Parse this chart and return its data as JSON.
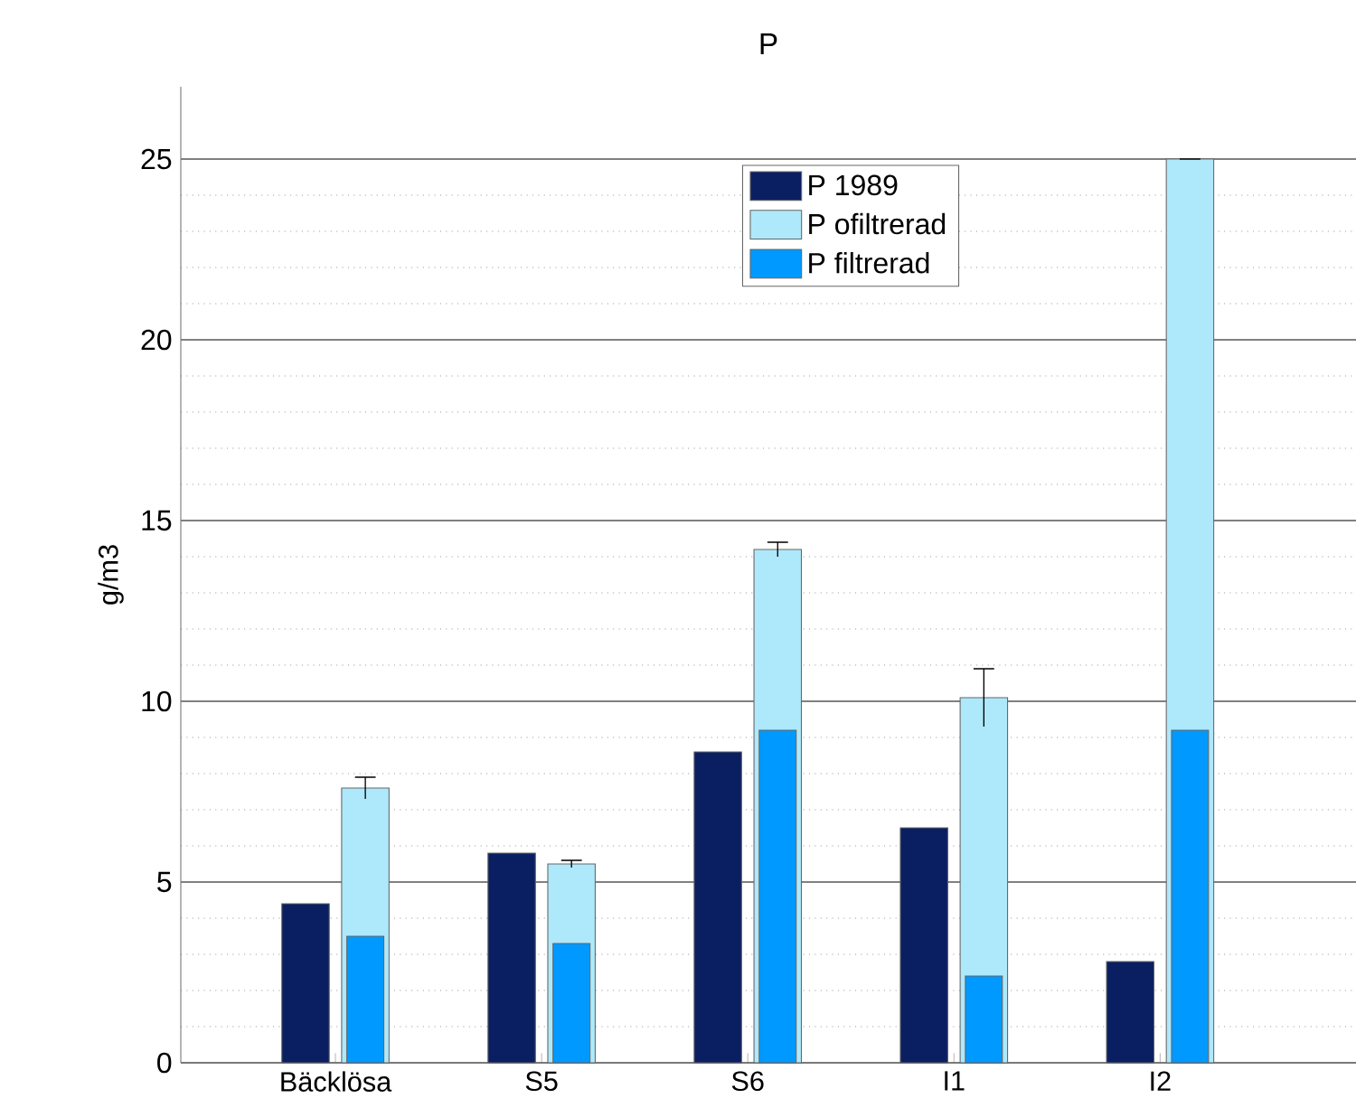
{
  "chart_data": {
    "type": "bar",
    "title": "P",
    "ylabel": "g/m3",
    "categories": [
      "Bäcklösa",
      "S5",
      "S6",
      "I1",
      "I2"
    ],
    "series": [
      {
        "name": "P 1989",
        "color": "#0a1f62",
        "values": [
          4.4,
          5.8,
          8.6,
          6.5,
          2.8
        ]
      },
      {
        "name": "P ofiltrerad",
        "color": "#aee8fb",
        "values": [
          7.6,
          5.5,
          14.2,
          10.1,
          25.0
        ],
        "errors": [
          0.3,
          0.1,
          0.2,
          0.8,
          0
        ]
      },
      {
        "name": "P filtrerad",
        "color": "#0099ff",
        "values": [
          3.5,
          3.3,
          9.2,
          2.4,
          9.2
        ]
      }
    ],
    "ylim": [
      0,
      27
    ],
    "yticks": [
      0,
      5,
      10,
      15,
      20,
      25
    ],
    "grid": "y",
    "legend": "top"
  }
}
